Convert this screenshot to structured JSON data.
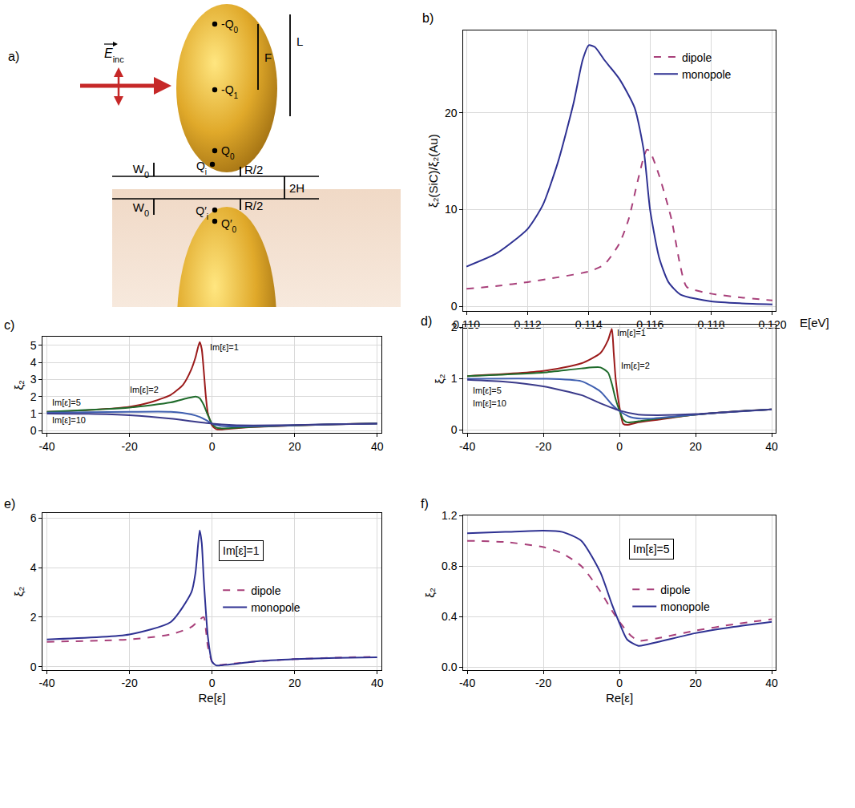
{
  "diagram": {
    "panel": "a)",
    "field": {
      "label": "E",
      "subscript": "inc"
    },
    "charges": [
      {
        "label": "-Q",
        "subscript": "0"
      },
      {
        "label": "-Q",
        "subscript": "1"
      },
      {
        "label": "Q",
        "subscript": "0"
      },
      {
        "label": "Q",
        "subscript": "i"
      },
      {
        "label": "Q′",
        "subscript": "i"
      },
      {
        "label": "Q′",
        "subscript": "0"
      }
    ],
    "dimensions": [
      {
        "label": "F",
        "subscript": ""
      },
      {
        "label": "L",
        "subscript": ""
      },
      {
        "label": "W",
        "subscript": "0"
      },
      {
        "label": "R/2",
        "subscript": ""
      },
      {
        "label": "2H",
        "subscript": ""
      },
      {
        "label": "W",
        "subscript": "0"
      },
      {
        "label": "R/2",
        "subscript": ""
      }
    ]
  },
  "chart_data": [
    {
      "panel": "b)",
      "type": "line",
      "xlabel": "E[eV]",
      "ylabel": "ξ₂(SiC)/ξ₂(Au)",
      "xlim": [
        0.1099,
        0.1201
      ],
      "ylim": [
        -0.5,
        28.5
      ],
      "xticks": [
        {
          "value": 0.11,
          "label": "0.110"
        },
        0.112,
        0.114,
        0.116,
        0.118,
        {
          "value": 0.12,
          "label": "0.120"
        }
      ],
      "yticks": [
        0,
        10,
        20
      ],
      "grid": true,
      "legend": "top right",
      "series": [
        {
          "name": "dipole",
          "color": "#a8407a",
          "line_style": "dash",
          "x": [
            0.11,
            0.111,
            0.112,
            0.113,
            0.114,
            0.1145,
            0.115,
            0.1153,
            0.1156,
            0.1158,
            0.1159,
            0.116,
            0.1163,
            0.1167,
            0.117,
            0.1172,
            0.118,
            0.119,
            0.12
          ],
          "values": [
            1.8,
            2.1,
            2.5,
            3.0,
            3.6,
            4.3,
            6.5,
            9,
            13,
            15.5,
            16.2,
            16,
            13.5,
            9,
            4,
            2,
            1.3,
            0.9,
            0.6
          ]
        },
        {
          "name": "monopole",
          "color": "#2e3192",
          "line_style": "solid",
          "x": [
            0.11,
            0.111,
            0.112,
            0.1125,
            0.113,
            0.1135,
            0.1138,
            0.114,
            0.1142,
            0.1145,
            0.115,
            0.1155,
            0.1158,
            0.116,
            0.1163,
            0.1166,
            0.117,
            0.118,
            0.119,
            0.12
          ],
          "values": [
            4.1,
            5.5,
            8,
            10.5,
            15,
            21,
            25.5,
            27,
            26.8,
            25.5,
            23.5,
            20.5,
            16,
            10,
            5,
            2.5,
            1.2,
            0.5,
            0.3,
            0.2
          ]
        }
      ]
    },
    {
      "panel": "c)",
      "type": "line",
      "ylabel": "ξ₂",
      "xlim": [
        -41,
        41
      ],
      "ylim": [
        -0.15,
        5.5
      ],
      "xticks": [
        -40,
        -20,
        0,
        20,
        40
      ],
      "yticks": [
        0,
        1,
        2,
        3,
        4,
        5
      ],
      "grid": true,
      "series": [
        {
          "name": "Im[ε]=1",
          "color": "#9b1b1b",
          "line_style": "solid",
          "x": [
            -40,
            -30,
            -20,
            -15,
            -10,
            -7,
            -5,
            -4,
            -3,
            -2.5,
            -2,
            -1.5,
            -1,
            0,
            1,
            2,
            4,
            10,
            20,
            30,
            40
          ],
          "values": [
            1.1,
            1.2,
            1.4,
            1.65,
            2.1,
            2.7,
            3.6,
            4.3,
            5.2,
            4.8,
            3.5,
            2,
            1.0,
            0.3,
            0.08,
            0.06,
            0.1,
            0.2,
            0.3,
            0.37,
            0.42
          ]
        },
        {
          "name": "Im[ε]=2",
          "color": "#1f6b2b",
          "line_style": "solid",
          "x": [
            -40,
            -20,
            -10,
            -6,
            -4,
            -3,
            -2,
            -1,
            0,
            1,
            2,
            4,
            10,
            20,
            30,
            40
          ],
          "values": [
            1.1,
            1.35,
            1.65,
            1.9,
            2.0,
            1.9,
            1.5,
            0.9,
            0.4,
            0.18,
            0.13,
            0.14,
            0.22,
            0.3,
            0.37,
            0.42
          ]
        },
        {
          "name": "Im[ε]=5",
          "color": "#3f5fb0",
          "line_style": "solid",
          "x": [
            -40,
            -20,
            -10,
            -5,
            -3,
            -1,
            0,
            2,
            5,
            10,
            20,
            30,
            40
          ],
          "values": [
            1.05,
            1.1,
            1.1,
            0.95,
            0.8,
            0.55,
            0.4,
            0.28,
            0.24,
            0.25,
            0.31,
            0.37,
            0.41
          ]
        },
        {
          "name": "Im[ε]=10",
          "color": "#3a3a8a",
          "line_style": "solid",
          "x": [
            -40,
            -30,
            -20,
            -10,
            -5,
            0,
            5,
            10,
            20,
            30,
            40
          ],
          "values": [
            1.0,
            0.98,
            0.9,
            0.7,
            0.55,
            0.4,
            0.32,
            0.3,
            0.32,
            0.37,
            0.41
          ]
        }
      ]
    },
    {
      "panel": "d)",
      "type": "line",
      "ylabel": "ξ₂",
      "xlim": [
        -41,
        41
      ],
      "ylim": [
        -0.06,
        2.05
      ],
      "xticks": [
        -40,
        -20,
        0,
        20,
        40
      ],
      "yticks": [
        0,
        1,
        2
      ],
      "grid": true,
      "series": [
        {
          "name": "Im[ε]=1",
          "color": "#9b1b1b",
          "line_style": "solid",
          "x": [
            -40,
            -20,
            -10,
            -5,
            -3,
            -2,
            -1.5,
            -1,
            0,
            1,
            2,
            5,
            10,
            20,
            30,
            40
          ],
          "values": [
            1.05,
            1.15,
            1.3,
            1.5,
            1.75,
            1.97,
            1.5,
            1.0,
            0.45,
            0.12,
            0.1,
            0.15,
            0.2,
            0.3,
            0.36,
            0.4
          ]
        },
        {
          "name": "Im[ε]=2",
          "color": "#1f6b2b",
          "line_style": "solid",
          "x": [
            -40,
            -20,
            -10,
            -5,
            -3,
            -2,
            -1,
            0,
            1,
            2,
            5,
            10,
            20,
            30,
            40
          ],
          "values": [
            1.05,
            1.12,
            1.2,
            1.22,
            1.12,
            0.9,
            0.6,
            0.38,
            0.2,
            0.15,
            0.17,
            0.22,
            0.3,
            0.36,
            0.4
          ]
        },
        {
          "name": "Im[ε]=5",
          "color": "#3f5fb0",
          "line_style": "solid",
          "x": [
            -40,
            -20,
            -10,
            -5,
            -2,
            0,
            3,
            7,
            15,
            25,
            40
          ],
          "values": [
            1.0,
            1.0,
            0.95,
            0.75,
            0.5,
            0.37,
            0.25,
            0.22,
            0.27,
            0.33,
            0.4
          ]
        },
        {
          "name": "Im[ε]=10",
          "color": "#3a3a8a",
          "line_style": "solid",
          "x": [
            -40,
            -30,
            -20,
            -10,
            -5,
            0,
            5,
            10,
            20,
            30,
            40
          ],
          "values": [
            0.98,
            0.94,
            0.85,
            0.68,
            0.52,
            0.38,
            0.3,
            0.29,
            0.31,
            0.36,
            0.4
          ]
        }
      ]
    },
    {
      "panel": "e)",
      "type": "line",
      "xlabel": "Re[ε]",
      "ylabel": "ξ₂",
      "xlim": [
        -41,
        41
      ],
      "ylim": [
        -0.13,
        6.2
      ],
      "xticks": [
        -40,
        -20,
        0,
        20,
        40
      ],
      "yticks": [
        0,
        2,
        4,
        6
      ],
      "grid": true,
      "legend": "right",
      "annotations": [
        "Im[ε]=1"
      ],
      "series": [
        {
          "name": "dipole",
          "color": "#a8407a",
          "line_style": "dash",
          "x": [
            -40,
            -20,
            -10,
            -5,
            -3,
            -2,
            -1.5,
            -1,
            0,
            1,
            2,
            5,
            10,
            20,
            30,
            40
          ],
          "values": [
            1.0,
            1.1,
            1.3,
            1.6,
            1.9,
            2.0,
            1.5,
            0.8,
            0.2,
            0.07,
            0.07,
            0.12,
            0.2,
            0.3,
            0.36,
            0.4
          ]
        },
        {
          "name": "monopole",
          "color": "#2e3192",
          "line_style": "solid",
          "x": [
            -40,
            -20,
            -10,
            -5,
            -4,
            -3,
            -2.5,
            -2,
            -1,
            0,
            1,
            2,
            5,
            10,
            20,
            30,
            40
          ],
          "values": [
            1.1,
            1.3,
            1.8,
            3.0,
            3.8,
            5.5,
            5.0,
            3.5,
            1.2,
            0.2,
            0.05,
            0.05,
            0.1,
            0.2,
            0.3,
            0.35,
            0.38
          ]
        }
      ]
    },
    {
      "panel": "f)",
      "type": "line",
      "xlabel": "Re[ε]",
      "ylabel": "ξ₂",
      "xlim": [
        -41,
        41
      ],
      "ylim": [
        -0.02,
        1.2
      ],
      "xticks": [
        -40,
        -20,
        0,
        20,
        40
      ],
      "yticks": [
        {
          "value": 0,
          "label": "0.0"
        },
        0.4,
        0.8,
        1.2
      ],
      "grid": true,
      "legend": "right",
      "annotations": [
        "Im[ε]=5"
      ],
      "series": [
        {
          "name": "dipole",
          "color": "#a8407a",
          "line_style": "dash",
          "x": [
            -40,
            -30,
            -20,
            -15,
            -10,
            -5,
            -2,
            0,
            3,
            5,
            10,
            20,
            30,
            40
          ],
          "values": [
            1.0,
            0.99,
            0.95,
            0.9,
            0.8,
            0.6,
            0.45,
            0.36,
            0.25,
            0.21,
            0.23,
            0.29,
            0.34,
            0.38
          ]
        },
        {
          "name": "monopole",
          "color": "#2e3192",
          "line_style": "solid",
          "x": [
            -40,
            -30,
            -20,
            -15,
            -10,
            -5,
            -2,
            0,
            2,
            5,
            10,
            20,
            30,
            40
          ],
          "values": [
            1.06,
            1.07,
            1.08,
            1.07,
            1.0,
            0.75,
            0.5,
            0.35,
            0.22,
            0.17,
            0.2,
            0.27,
            0.32,
            0.36
          ]
        }
      ]
    }
  ]
}
